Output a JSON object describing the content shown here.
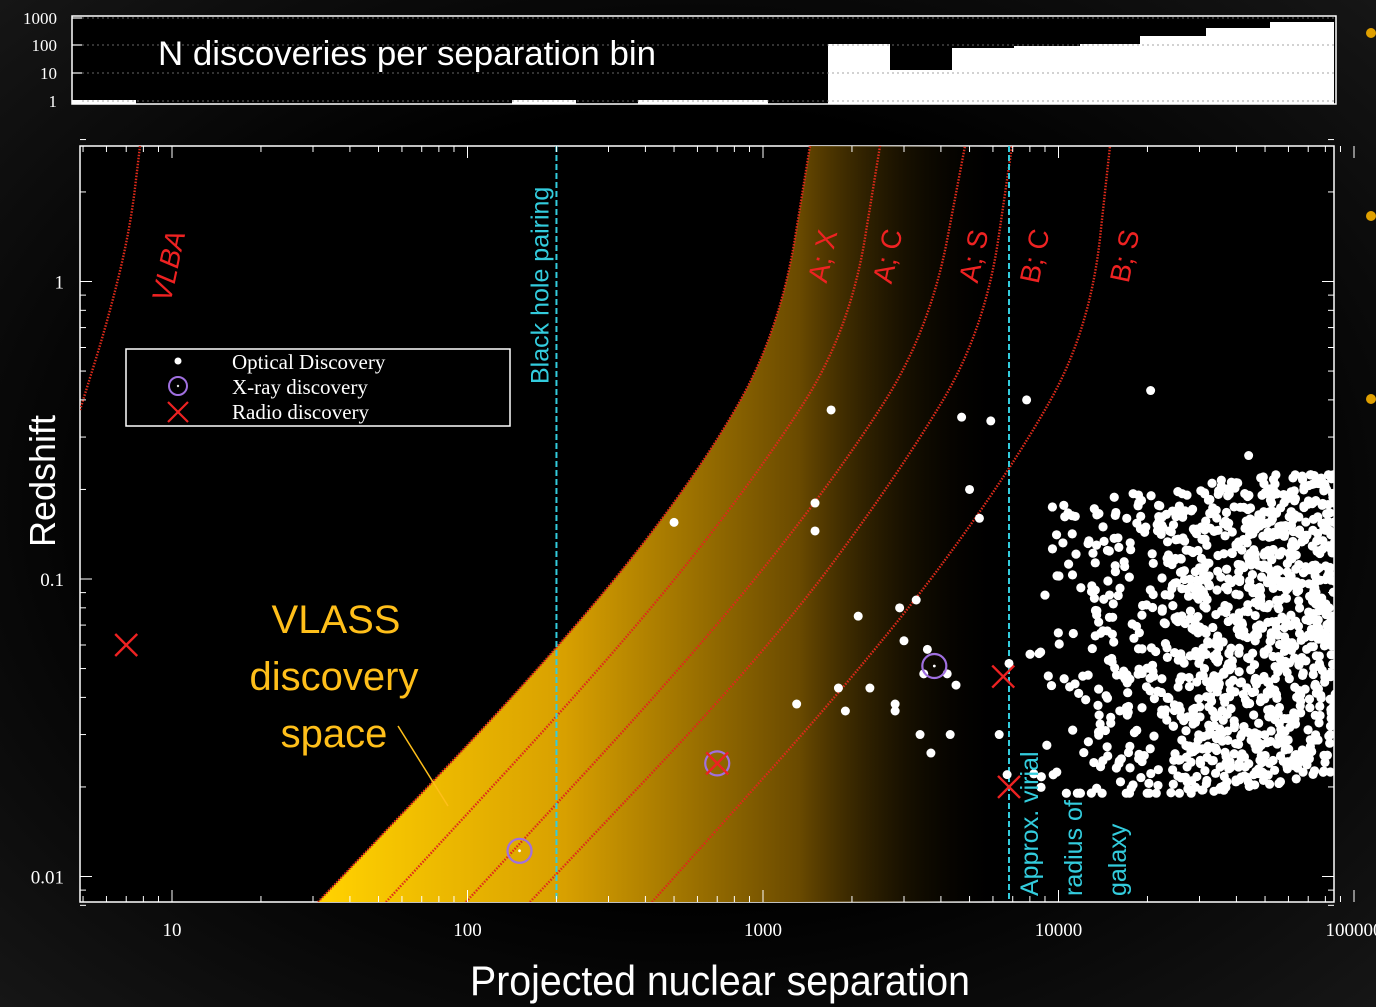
{
  "histogram": {
    "title": "N discoveries per separation bin",
    "y_ticks": [
      "1000",
      "100",
      "10",
      "1"
    ]
  },
  "chart_data": {
    "type": "scatter",
    "xlabel": "Projected nuclear separation",
    "ylabel": "Redshift",
    "x_scale": "log",
    "y_scale": "log",
    "xlim": [
      5,
      100000
    ],
    "ylim": [
      0.0075,
      3.0
    ],
    "x_ticks": [
      "10",
      "100",
      "1000",
      "10000",
      "100000"
    ],
    "y_ticks": [
      "1",
      "0.1",
      "0.01"
    ],
    "legend": {
      "position": "upper-left",
      "entries": [
        "Optical Discovery",
        "X-ray discovery",
        "Radio discovery"
      ]
    },
    "vertical_lines": [
      {
        "x": 200,
        "label": "Black hole pairing",
        "color": "#33ccdd"
      },
      {
        "x": 6800,
        "label": "Approx. virial radius of galaxy",
        "color": "#33ccdd"
      }
    ],
    "resolution_curves": [
      {
        "label": "VLBA",
        "z_low": 0.35,
        "z_high": 3.0
      },
      {
        "label": "A; X",
        "z_low": 0.0075,
        "z_high": 3.0
      },
      {
        "label": "A; C",
        "z_low": 0.0075,
        "z_high": 3.0
      },
      {
        "label": "A; S",
        "z_low": 0.0075,
        "z_high": 3.0
      },
      {
        "label": "B; C",
        "z_low": 0.0075,
        "z_high": 3.0
      },
      {
        "label": "B; S",
        "z_low": 0.0075,
        "z_high": 3.0
      }
    ],
    "shaded_region": {
      "label": "VLASS discovery space",
      "color": "#ffc800"
    },
    "series": [
      {
        "name": "Optical Discovery",
        "color": "#ffffff",
        "points": [
          [
            500,
            0.155
          ],
          [
            1700,
            0.37
          ],
          [
            1500,
            0.18
          ],
          [
            1500,
            0.145
          ],
          [
            2100,
            0.075
          ],
          [
            1300,
            0.038
          ],
          [
            1900,
            0.036
          ],
          [
            1800,
            0.043
          ],
          [
            2300,
            0.043
          ],
          [
            2800,
            0.038
          ],
          [
            2800,
            0.036
          ],
          [
            3000,
            0.062
          ],
          [
            2900,
            0.08
          ],
          [
            3300,
            0.085
          ],
          [
            3600,
            0.058
          ],
          [
            3500,
            0.048
          ],
          [
            3400,
            0.03
          ],
          [
            3700,
            0.026
          ],
          [
            4200,
            0.048
          ],
          [
            4300,
            0.03
          ],
          [
            5000,
            0.2
          ],
          [
            5400,
            0.16
          ],
          [
            4500,
            0.044
          ],
          [
            4700,
            0.35
          ],
          [
            5900,
            0.34
          ],
          [
            7800,
            0.4
          ],
          [
            20500,
            0.43
          ],
          [
            44000,
            0.26
          ],
          [
            6700,
            0.022
          ],
          [
            6300,
            0.03
          ],
          [
            6800,
            0.052
          ]
        ]
      },
      {
        "name": "X-ray discovery",
        "color": "#a070e0",
        "points": [
          [
            150,
            0.0122
          ],
          [
            700,
            0.024
          ],
          [
            3800,
            0.051
          ]
        ]
      },
      {
        "name": "Radio discovery",
        "color": "#ee2222",
        "points": [
          [
            7,
            0.06
          ],
          [
            700,
            0.024
          ],
          [
            6500,
            0.047
          ],
          [
            6800,
            0.02
          ]
        ]
      }
    ]
  }
}
